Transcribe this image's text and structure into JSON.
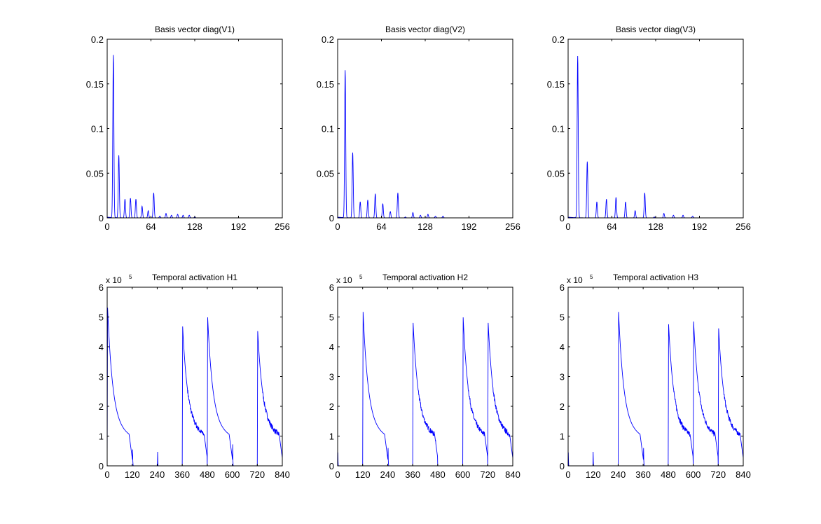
{
  "chart_data": [
    {
      "type": "line",
      "title": "Basis vector diag(V1)",
      "xlim": [
        0,
        256
      ],
      "ylim": [
        0,
        0.2
      ],
      "xticks": [
        "0",
        "64",
        "128",
        "192",
        "256"
      ],
      "yticks": [
        "0",
        "0.05",
        "0.1",
        "0.15",
        "0.2"
      ],
      "xtick_values": [
        0,
        64,
        128,
        192,
        256
      ],
      "ytick_values": [
        0,
        0.05,
        0.1,
        0.15,
        0.2
      ],
      "peaks": [
        [
          9,
          0.182
        ],
        [
          17,
          0.07
        ],
        [
          26,
          0.021
        ],
        [
          34,
          0.022
        ],
        [
          42,
          0.021
        ],
        [
          51,
          0.013
        ],
        [
          60,
          0.008
        ],
        [
          68,
          0.028
        ],
        [
          77,
          0.002
        ],
        [
          86,
          0.005
        ],
        [
          94,
          0.003
        ],
        [
          103,
          0.004
        ],
        [
          111,
          0.003
        ],
        [
          120,
          0.003
        ],
        [
          128,
          0.001
        ]
      ]
    },
    {
      "type": "line",
      "title": "Basis vector diag(V2)",
      "xlim": [
        0,
        256
      ],
      "ylim": [
        0,
        0.2
      ],
      "xticks": [
        "0",
        "64",
        "128",
        "192",
        "256"
      ],
      "yticks": [
        "0",
        "0.05",
        "0.1",
        "0.15",
        "0.2"
      ],
      "xtick_values": [
        0,
        64,
        128,
        192,
        256
      ],
      "ytick_values": [
        0,
        0.05,
        0.1,
        0.15,
        0.2
      ],
      "peaks": [
        [
          11,
          0.165
        ],
        [
          22,
          0.073
        ],
        [
          33,
          0.018
        ],
        [
          44,
          0.02
        ],
        [
          55,
          0.027
        ],
        [
          66,
          0.016
        ],
        [
          77,
          0.007
        ],
        [
          88,
          0.028
        ],
        [
          99,
          0.001
        ],
        [
          110,
          0.006
        ],
        [
          121,
          0.003
        ],
        [
          132,
          0.004
        ],
        [
          143,
          0.002
        ],
        [
          154,
          0.002
        ]
      ]
    },
    {
      "type": "line",
      "title": "Basis vector diag(V3)",
      "xlim": [
        0,
        256
      ],
      "ylim": [
        0,
        0.2
      ],
      "xticks": [
        "0",
        "64",
        "128",
        "192",
        "256"
      ],
      "yticks": [
        "0",
        "0.05",
        "0.1",
        "0.15",
        "0.2"
      ],
      "xtick_values": [
        0,
        64,
        128,
        192,
        256
      ],
      "ytick_values": [
        0,
        0.05,
        0.1,
        0.15,
        0.2
      ],
      "peaks": [
        [
          14,
          0.181
        ],
        [
          28,
          0.063
        ],
        [
          42,
          0.018
        ],
        [
          56,
          0.021
        ],
        [
          70,
          0.023
        ],
        [
          84,
          0.018
        ],
        [
          98,
          0.008
        ],
        [
          112,
          0.028
        ],
        [
          126,
          0.001
        ],
        [
          140,
          0.005
        ],
        [
          154,
          0.003
        ],
        [
          168,
          0.003
        ],
        [
          182,
          0.002
        ]
      ]
    },
    {
      "type": "line",
      "title": "Temporal activation H1",
      "xlim": [
        0,
        840
      ],
      "ylim": [
        0,
        6
      ],
      "y_multiplier": "x 10",
      "y_exponent": "5",
      "xticks": [
        "0",
        "120",
        "240",
        "360",
        "480",
        "600",
        "720",
        "840"
      ],
      "yticks": [
        "0",
        "1",
        "2",
        "3",
        "4",
        "5",
        "6"
      ],
      "xtick_values": [
        0,
        120,
        240,
        360,
        480,
        600,
        720,
        840
      ],
      "ytick_values": [
        0,
        1,
        2,
        3,
        4,
        5,
        6
      ],
      "events": [
        {
          "onset": 0,
          "peak": 5.35,
          "duration": 130,
          "noisy": false
        },
        {
          "onset": 360,
          "peak": 4.67,
          "duration": 119,
          "noisy": true
        },
        {
          "onset": 480,
          "peak": 5.0,
          "duration": 130,
          "noisy": false
        },
        {
          "onset": 720,
          "peak": 4.5,
          "duration": 120,
          "noisy": true
        }
      ],
      "spikes": [
        [
          122,
          0.55
        ],
        [
          242,
          0.47
        ],
        [
          602,
          0.72
        ]
      ]
    },
    {
      "type": "line",
      "title": "Temporal activation H2",
      "xlim": [
        0,
        840
      ],
      "ylim": [
        0,
        6
      ],
      "y_multiplier": "x 10",
      "y_exponent": "5",
      "xticks": [
        "0",
        "120",
        "240",
        "360",
        "480",
        "600",
        "720",
        "840"
      ],
      "yticks": [
        "0",
        "1",
        "2",
        "3",
        "4",
        "5",
        "6"
      ],
      "xtick_values": [
        0,
        120,
        240,
        360,
        480,
        600,
        720,
        840
      ],
      "ytick_values": [
        0,
        1,
        2,
        3,
        4,
        5,
        6
      ],
      "events": [
        {
          "onset": 120,
          "peak": 5.2,
          "duration": 130,
          "noisy": false
        },
        {
          "onset": 360,
          "peak": 4.8,
          "duration": 119,
          "noisy": true
        },
        {
          "onset": 600,
          "peak": 5.0,
          "duration": 119,
          "noisy": true
        },
        {
          "onset": 720,
          "peak": 4.8,
          "duration": 120,
          "noisy": true
        }
      ],
      "spikes": [
        [
          1,
          0.45
        ],
        [
          242,
          0.6
        ],
        [
          470,
          0.85
        ]
      ]
    },
    {
      "type": "line",
      "title": "Temporal activation H3",
      "xlim": [
        0,
        840
      ],
      "ylim": [
        0,
        6
      ],
      "y_multiplier": "x 10",
      "y_exponent": "5",
      "xticks": [
        "0",
        "120",
        "240",
        "360",
        "480",
        "600",
        "720",
        "840"
      ],
      "yticks": [
        "0",
        "1",
        "2",
        "3",
        "4",
        "5",
        "6"
      ],
      "xtick_values": [
        0,
        120,
        240,
        360,
        480,
        600,
        720,
        840
      ],
      "ytick_values": [
        0,
        1,
        2,
        3,
        4,
        5,
        6
      ],
      "events": [
        {
          "onset": 240,
          "peak": 5.2,
          "duration": 130,
          "noisy": false
        },
        {
          "onset": 480,
          "peak": 4.75,
          "duration": 119,
          "noisy": true
        },
        {
          "onset": 600,
          "peak": 4.85,
          "duration": 119,
          "noisy": true
        },
        {
          "onset": 720,
          "peak": 4.6,
          "duration": 120,
          "noisy": true
        }
      ],
      "spikes": [
        [
          1,
          0.45
        ],
        [
          120,
          0.47
        ],
        [
          362,
          0.6
        ]
      ]
    }
  ],
  "line_color": "#0000ff"
}
